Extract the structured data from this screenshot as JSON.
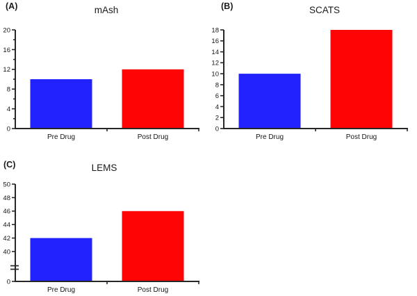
{
  "figure": {
    "background": "#ffffff",
    "axis_color": "#262626",
    "text_color": "#151515"
  },
  "chart_data": [
    {
      "type": "bar",
      "panel_label": "(A)",
      "title": "mAsh",
      "categories": [
        "Pre Drug",
        "Post Drug"
      ],
      "values": [
        10,
        12
      ],
      "bar_colors": [
        "#2222fe",
        "#fe0404"
      ],
      "ylim": [
        0,
        20
      ],
      "yticks": [
        0,
        4,
        8,
        12,
        16,
        20
      ],
      "yticks_minor": [
        2,
        6,
        10,
        14,
        18
      ],
      "grid": false,
      "legend": false
    },
    {
      "type": "bar",
      "panel_label": "(B)",
      "title": "SCATS",
      "categories": [
        "Pre Drug",
        "Post Drug"
      ],
      "values": [
        10,
        18
      ],
      "bar_colors": [
        "#2222fe",
        "#fe0404"
      ],
      "ylim": [
        0,
        18
      ],
      "yticks": [
        0,
        2,
        4,
        6,
        8,
        10,
        12,
        14,
        16,
        18
      ],
      "yticks_minor": [],
      "grid": false,
      "legend": false
    },
    {
      "type": "bar",
      "panel_label": "(C)",
      "title": "LEMS",
      "categories": [
        "Pre Drug",
        "Post Drug"
      ],
      "values": [
        42,
        46
      ],
      "bar_colors": [
        "#2222fe",
        "#fe0404"
      ],
      "ylim": [
        0,
        50
      ],
      "yticks": [
        0,
        40,
        42,
        44,
        46,
        48,
        50
      ],
      "yticks_minor": [],
      "axis_break": {
        "resume_at": 40
      },
      "grid": false,
      "legend": false
    }
  ]
}
